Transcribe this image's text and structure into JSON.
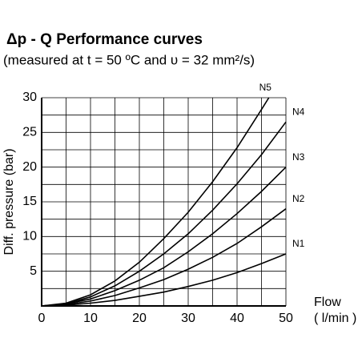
{
  "chart_data": {
    "type": "line",
    "title": "Δp - Q Performance curves",
    "subtitle": "(measured at t = 50 ºC and υ = 32 mm²/s)",
    "y_label": "Diff. pressure (bar)",
    "x_label": "Flow",
    "x_unit": "( l/min )",
    "xlim": [
      0,
      50
    ],
    "ylim": [
      0,
      30
    ],
    "xticks": [
      0,
      10,
      20,
      30,
      40,
      50
    ],
    "yticks": [
      5,
      10,
      15,
      20,
      25,
      30
    ],
    "xminorticks": [
      5,
      15,
      25,
      35,
      45
    ],
    "yminorticks": [
      2.5,
      7.5,
      12.5,
      17.5,
      22.5,
      27.5
    ],
    "grid": true,
    "series": [
      {
        "name": "N1",
        "color": "#000000",
        "x": [
          0,
          5,
          10,
          15,
          20,
          25,
          30,
          35,
          40,
          45,
          50
        ],
        "values": [
          0,
          0.1,
          0.4,
          0.8,
          1.4,
          2.0,
          2.8,
          3.7,
          4.8,
          6.1,
          7.5
        ]
      },
      {
        "name": "N2",
        "color": "#000000",
        "x": [
          0,
          5,
          10,
          15,
          20,
          25,
          30,
          35,
          40,
          45,
          50
        ],
        "values": [
          0,
          0.2,
          0.7,
          1.5,
          2.6,
          3.8,
          5.3,
          7.0,
          9.0,
          11.4,
          14
        ]
      },
      {
        "name": "N3",
        "color": "#000000",
        "x": [
          0,
          5,
          10,
          15,
          20,
          25,
          30,
          35,
          40,
          45,
          50
        ],
        "values": [
          0,
          0.3,
          1.0,
          2.2,
          3.7,
          5.5,
          7.8,
          10.4,
          13.3,
          16.5,
          20
        ]
      },
      {
        "name": "N4",
        "color": "#000000",
        "x": [
          0,
          5,
          10,
          15,
          20,
          25,
          30,
          35,
          40,
          45,
          50
        ],
        "values": [
          0,
          0.3,
          1.3,
          2.9,
          5.0,
          7.5,
          10.4,
          13.8,
          17.6,
          21.8,
          26.5
        ]
      },
      {
        "name": "N5",
        "color": "#000000",
        "x": [
          0,
          5,
          10,
          15,
          20,
          25,
          30,
          35,
          40,
          45,
          46.5
        ],
        "values": [
          0,
          0.4,
          1.6,
          3.6,
          6.3,
          9.7,
          13.5,
          17.9,
          22.8,
          28.3,
          30
        ]
      }
    ]
  }
}
